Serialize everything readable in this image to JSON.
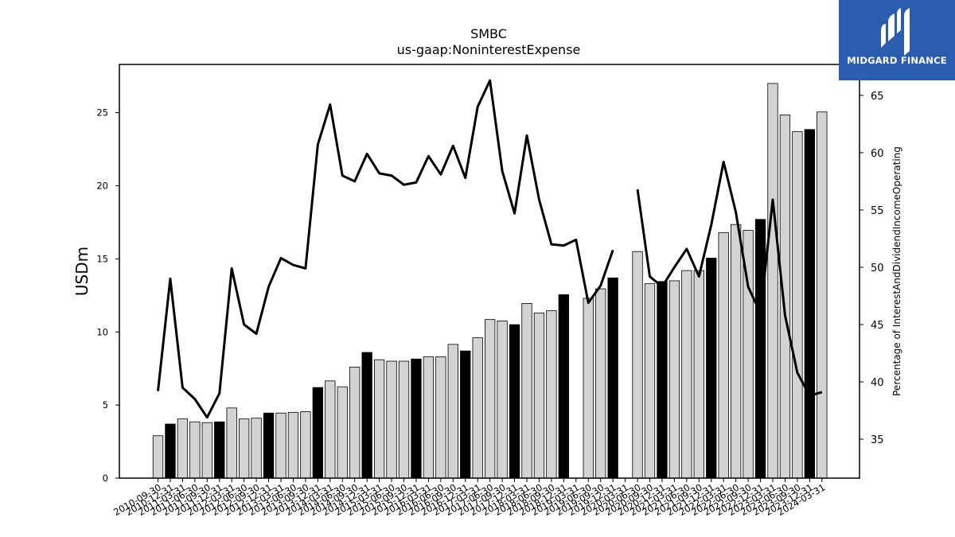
{
  "brand": {
    "name": "MIDGARD FINANCE",
    "color": "#2a5db0"
  },
  "chart_data": {
    "type": "bar",
    "title": "SMBC",
    "subtitle": "us-gaap:NoninterestExpense",
    "ylabel": "USDm",
    "y2label": "Percentage of InterestAndDividendIncomeOperating",
    "ylim": [
      0,
      28.3
    ],
    "y2lim": [
      31.6,
      67.7
    ],
    "yticks": [
      0,
      5,
      10,
      15,
      20,
      25
    ],
    "y2ticks": [
      35,
      40,
      45,
      50,
      55,
      60,
      65
    ],
    "tick_labels": [
      "2010-09-30",
      "2010-12-31",
      "2011-03-31",
      "2011-06-30",
      "2011-09-30",
      "2011-12-31",
      "2012-03-31",
      "2012-06-30",
      "2012-09-30",
      "2012-12-31",
      "2013-03-31",
      "2013-06-30",
      "2013-09-30",
      "2013-12-31",
      "2014-03-31",
      "2014-06-30",
      "2014-09-30",
      "2014-12-31",
      "2015-03-31",
      "2015-06-30",
      "2015-09-30",
      "2015-12-31",
      "2016-03-31",
      "2016-06-30",
      "2016-09-30",
      "2016-12-31",
      "2017-03-31",
      "2017-06-30",
      "2017-09-30",
      "2017-12-31",
      "2018-03-31",
      "2018-06-30",
      "2018-09-30",
      "2018-12-31",
      "2019-03-31",
      "2019-06-30",
      "2019-09-30",
      "2019-12-31",
      "2020-03-31",
      "2020-06-30",
      "2020-09-30",
      "2020-12-31",
      "2021-03-31",
      "2021-06-30",
      "2021-09-30",
      "2021-12-31",
      "2022-03-31",
      "2022-06-30",
      "2022-09-30",
      "2022-12-31",
      "2023-03-31",
      "2023-06-30",
      "2023-09-30",
      "2023-12-31",
      "2024-03-31"
    ],
    "series": [
      {
        "kind": "bar",
        "values": [
          2.9,
          3.7,
          4.05,
          3.85,
          3.8,
          3.85,
          4.8,
          4.05,
          4.1,
          4.45,
          4.45,
          4.5,
          4.55,
          6.2,
          6.65,
          6.25,
          7.6,
          8.6,
          8.1,
          8.0,
          8.0,
          8.15,
          8.3,
          8.3,
          9.15,
          8.7,
          9.6,
          10.85,
          10.75,
          10.5,
          11.95,
          11.3,
          11.45,
          12.55,
          null,
          12.3,
          12.95,
          13.7,
          null,
          15.5,
          13.3,
          13.45,
          13.5,
          14.2,
          14.2,
          15.05,
          16.8,
          17.35,
          16.95,
          17.7,
          27.0,
          24.85,
          23.7,
          23.85,
          25.05
        ],
        "fill": [
          "#d3d3d3",
          "#000000",
          "#d3d3d3",
          "#d3d3d3",
          "#d3d3d3",
          "#000000",
          "#d3d3d3",
          "#d3d3d3",
          "#d3d3d3",
          "#000000",
          "#d3d3d3",
          "#d3d3d3",
          "#d3d3d3",
          "#000000",
          "#d3d3d3",
          "#d3d3d3",
          "#d3d3d3",
          "#000000",
          "#d3d3d3",
          "#d3d3d3",
          "#d3d3d3",
          "#000000",
          "#d3d3d3",
          "#d3d3d3",
          "#d3d3d3",
          "#000000",
          "#d3d3d3",
          "#d3d3d3",
          "#d3d3d3",
          "#000000",
          "#d3d3d3",
          "#d3d3d3",
          "#d3d3d3",
          "#000000",
          "#d3d3d3",
          "#d3d3d3",
          "#d3d3d3",
          "#000000",
          "#d3d3d3",
          "#d3d3d3",
          "#d3d3d3",
          "#000000",
          "#d3d3d3",
          "#d3d3d3",
          "#d3d3d3",
          "#000000",
          "#d3d3d3",
          "#d3d3d3",
          "#d3d3d3",
          "#000000",
          "#d3d3d3",
          "#d3d3d3",
          "#d3d3d3",
          "#000000",
          "#d3d3d3"
        ]
      },
      {
        "kind": "line",
        "axis": "right",
        "color": "#000000",
        "values": [
          39.2,
          49.0,
          39.5,
          38.5,
          36.9,
          39.0,
          49.9,
          45.0,
          44.2,
          48.3,
          50.8,
          50.2,
          49.9,
          60.7,
          64.2,
          58.0,
          57.5,
          59.9,
          58.2,
          58.0,
          57.2,
          57.4,
          59.7,
          58.1,
          60.6,
          57.8,
          64.0,
          66.3,
          58.4,
          54.7,
          61.5,
          55.9,
          52.0,
          51.9,
          52.4,
          46.9,
          48.4,
          51.5,
          null,
          56.8,
          49.2,
          48.3,
          50.0,
          51.6,
          49.2,
          53.7,
          59.2,
          54.8,
          48.3,
          46.0,
          55.9,
          45.8,
          40.8,
          38.8,
          39.1
        ]
      }
    ]
  }
}
